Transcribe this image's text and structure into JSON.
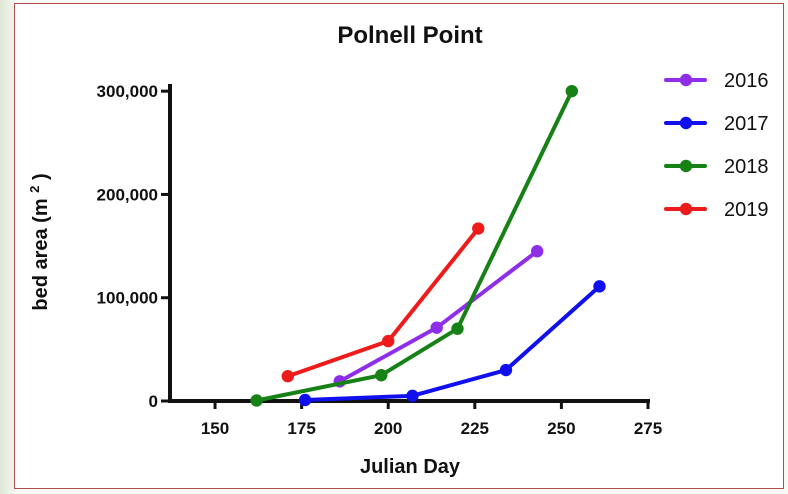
{
  "chart_data": {
    "type": "line",
    "title": "Polnell Point",
    "xlabel": "Julian Day",
    "ylabel": "bed area (m²)",
    "ylabel_parts": {
      "main": "bed area (m",
      "sup": "2",
      "end": ")"
    },
    "xlim": [
      137,
      275
    ],
    "ylim": [
      0,
      305000
    ],
    "x_ticks": [
      150,
      175,
      200,
      225,
      250,
      275
    ],
    "y_ticks": [
      0,
      100000,
      200000,
      300000
    ],
    "x_tick_labels": [
      "150",
      "175",
      "200",
      "225",
      "250",
      "275"
    ],
    "y_tick_labels": [
      "0",
      "100,000",
      "200,000",
      "300,000"
    ],
    "legend_position": "right",
    "grid": false,
    "series": [
      {
        "name": "2016",
        "color": "#8f2ee8",
        "points": [
          {
            "x": 186,
            "y": 19000
          },
          {
            "x": 214,
            "y": 71000
          },
          {
            "x": 243,
            "y": 145000
          }
        ]
      },
      {
        "name": "2017",
        "color": "#1010ee",
        "points": [
          {
            "x": 176,
            "y": 1000
          },
          {
            "x": 207,
            "y": 5000
          },
          {
            "x": 234,
            "y": 30000
          },
          {
            "x": 261,
            "y": 111000
          }
        ]
      },
      {
        "name": "2018",
        "color": "#168216",
        "points": [
          {
            "x": 162,
            "y": 500
          },
          {
            "x": 198,
            "y": 25000
          },
          {
            "x": 220,
            "y": 70000
          },
          {
            "x": 253,
            "y": 300000
          }
        ]
      },
      {
        "name": "2019",
        "color": "#ee1b1b",
        "points": [
          {
            "x": 171,
            "y": 24000
          },
          {
            "x": 200,
            "y": 58000
          },
          {
            "x": 226,
            "y": 167000
          }
        ]
      }
    ]
  }
}
